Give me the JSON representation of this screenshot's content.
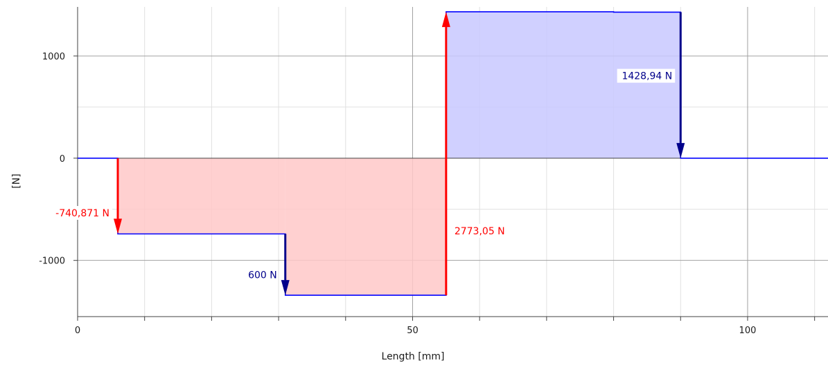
{
  "chart_data": {
    "type": "area",
    "xlabel": "Length [mm]",
    "ylabel": "[N]",
    "xlim": [
      0,
      112
    ],
    "ylim": [
      -1550,
      1480
    ],
    "x_ticks": [
      0,
      50,
      100
    ],
    "x_tick_labels": [
      "0",
      "50",
      "100"
    ],
    "y_ticks": [
      -1000,
      0,
      1000
    ],
    "y_tick_labels": [
      "-1000",
      "0",
      "1000"
    ],
    "x_grid": [
      10,
      20,
      30,
      40,
      50,
      60,
      70,
      80,
      90,
      100,
      110
    ],
    "y_grid": [
      -500,
      500
    ],
    "grid": true,
    "series": [
      {
        "points": [
          [
            0,
            0
          ],
          [
            6,
            0
          ],
          [
            6,
            -740.871
          ],
          [
            31,
            -740.871
          ],
          [
            31,
            -1340.871
          ],
          [
            55,
            -1340.871
          ],
          [
            55,
            1432.179
          ],
          [
            80,
            1432.179
          ],
          [
            80,
            1428.94
          ],
          [
            90,
            1428.94
          ],
          [
            90,
            0
          ],
          [
            112,
            0
          ]
        ]
      }
    ],
    "forces": [
      {
        "x": 6,
        "from": 0,
        "to": -740.871,
        "label": "-740,871 N",
        "color": "#ff0000"
      },
      {
        "x": 31,
        "from": -740.871,
        "to": -1340.871,
        "label": "600 N",
        "color": "#00008b"
      },
      {
        "x": 55,
        "from": -1340.871,
        "to": 1432.179,
        "label": "2773,05 N",
        "color": "#ff0000"
      },
      {
        "x": 90,
        "from": 1428.94,
        "to": 0,
        "label": "1428,94 N",
        "color": "#00008b"
      }
    ],
    "colors": {
      "line": "#0000ff",
      "negative_fill": "#ffc8c8",
      "positive_fill": "#c8c8ff",
      "zero_line": "#404040",
      "grid_major": "#a0a0a0",
      "grid_minor": "#e0e0e0"
    }
  }
}
